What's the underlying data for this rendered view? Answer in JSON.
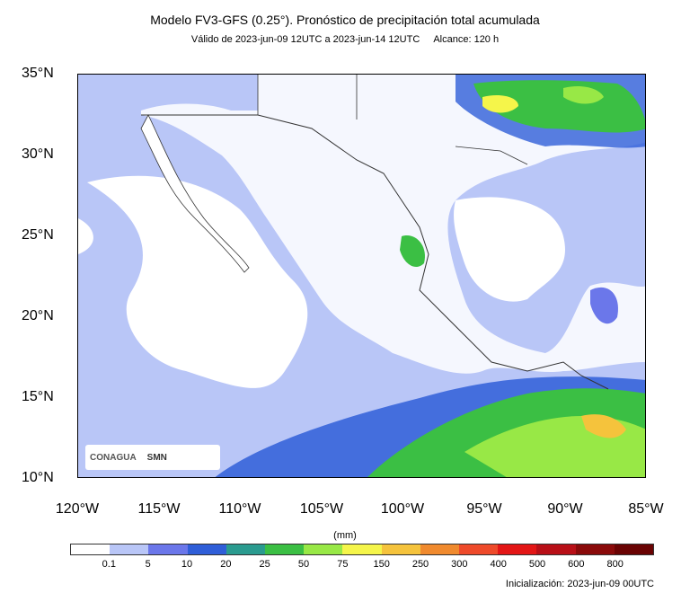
{
  "header": {
    "title": "Modelo FV3-GFS (0.25°). Pronóstico de precipitación total acumulada",
    "valid": "Válido de 2023-jun-09 12UTC a 2023-jun-14 12UTC",
    "range": "Alcance: 120 h"
  },
  "axes": {
    "latitudes": [
      "35°N",
      "30°N",
      "25°N",
      "20°N",
      "15°N",
      "10°N"
    ],
    "longitudes": [
      "120°W",
      "115°W",
      "110°W",
      "105°W",
      "100°W",
      "95°W",
      "90°W",
      "85°W"
    ]
  },
  "colorbar": {
    "units": "(mm)",
    "labels": [
      "0.1",
      "5",
      "10",
      "20",
      "25",
      "50",
      "75",
      "150",
      "250",
      "300",
      "400",
      "500",
      "600",
      "800"
    ],
    "colors": [
      "#ffffff",
      "#b9c6f7",
      "#6b77ea",
      "#2f5ed8",
      "#2a9b8f",
      "#3bbf44",
      "#98e846",
      "#f5f54a",
      "#f5c33c",
      "#f08a2e",
      "#ee4a2a",
      "#e31616",
      "#b80f17",
      "#8a0a0a",
      "#6a0303"
    ]
  },
  "logos": {
    "left": "CONAGUA",
    "right": "SMN"
  },
  "footer": {
    "init": "Inicialización: 2023-jun-09 00UTC"
  }
}
